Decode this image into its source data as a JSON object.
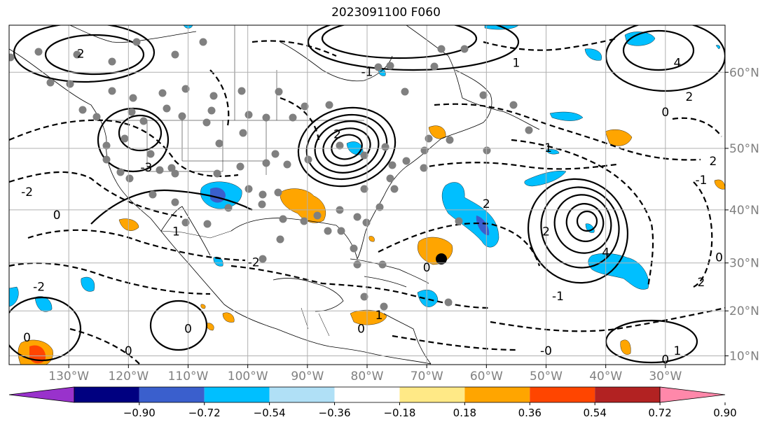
{
  "title": "2023091100 F060",
  "lon_labels": [
    "130°W",
    "120°W",
    "110°W",
    "100°W",
    "90°W",
    "80°W",
    "70°W",
    "60°W",
    "50°W",
    "40°W",
    "30°W"
  ],
  "lat_labels": [
    "60°N",
    "50°N",
    "40°N",
    "30°N",
    "20°N",
    "10°N"
  ],
  "lon_values": [
    -130,
    -120,
    -110,
    -100,
    -90,
    -80,
    -70,
    -60,
    -50,
    -40,
    -30
  ],
  "lat_values": [
    60,
    50,
    40,
    30,
    20,
    10
  ],
  "map_extent": {
    "lon_min": -140,
    "lon_max": -20,
    "lat_min": 8,
    "lat_max": 65
  },
  "colorbar": {
    "labels": [
      "−0.90",
      "−0.72",
      "−0.54",
      "−0.36",
      "−0.18",
      "0.18",
      "0.36",
      "0.54",
      "0.72",
      "0.90"
    ],
    "colors": [
      "#9932cc",
      "#000080",
      "#3a5fcd",
      "#00bfff",
      "#b0e0f6",
      "#ffffff",
      "#ffe986",
      "#ffa500",
      "#ff4500",
      "#b22222",
      "#ff88aa"
    ]
  },
  "contour_labels": [
    {
      "text": "2",
      "lon": -128,
      "lat": 62
    },
    {
      "text": "2",
      "lon": -85,
      "lat": 52
    },
    {
      "text": "-1",
      "lon": -80,
      "lat": 60
    },
    {
      "text": "1",
      "lon": -55,
      "lat": 61
    },
    {
      "text": "4",
      "lon": -28,
      "lat": 61
    },
    {
      "text": "2",
      "lon": -26,
      "lat": 57
    },
    {
      "text": "0",
      "lon": -30,
      "lat": 55
    },
    {
      "text": "-1",
      "lon": -50,
      "lat": 50
    },
    {
      "text": "-3",
      "lon": -117,
      "lat": 47
    },
    {
      "text": "-2",
      "lon": -137,
      "lat": 43
    },
    {
      "text": "0",
      "lon": -132,
      "lat": 39
    },
    {
      "text": "1",
      "lon": -112,
      "lat": 36
    },
    {
      "text": "2",
      "lon": -60,
      "lat": 41
    },
    {
      "text": "2",
      "lon": -22,
      "lat": 48
    },
    {
      "text": "-1",
      "lon": -24,
      "lat": 45
    },
    {
      "text": "2",
      "lon": -50,
      "lat": 36
    },
    {
      "text": "4",
      "lon": -40,
      "lat": 32
    },
    {
      "text": "0",
      "lon": -70,
      "lat": 29
    },
    {
      "text": "-2",
      "lon": -99,
      "lat": 30
    },
    {
      "text": "-2",
      "lon": -135,
      "lat": 25
    },
    {
      "text": "-1",
      "lon": -48,
      "lat": 23
    },
    {
      "text": "0",
      "lon": -21,
      "lat": 31
    },
    {
      "text": "2",
      "lon": -24,
      "lat": 26
    },
    {
      "text": "1",
      "lon": -78,
      "lat": 19
    },
    {
      "text": "0",
      "lon": -81,
      "lat": 16
    },
    {
      "text": "0",
      "lon": -110,
      "lat": 16
    },
    {
      "text": "0",
      "lon": -137,
      "lat": 14
    },
    {
      "text": "0",
      "lon": -120,
      "lat": 11
    },
    {
      "text": "-0",
      "lon": -50,
      "lat": 11
    },
    {
      "text": "1",
      "lon": -28,
      "lat": 11
    },
    {
      "text": "0",
      "lon": -30,
      "lat": 9
    }
  ],
  "colors": {
    "positive_orange": "#ffa500",
    "negative_blue": "#00bfff",
    "deep_blue": "#3a5fcd",
    "dot_gray": "#808080"
  }
}
